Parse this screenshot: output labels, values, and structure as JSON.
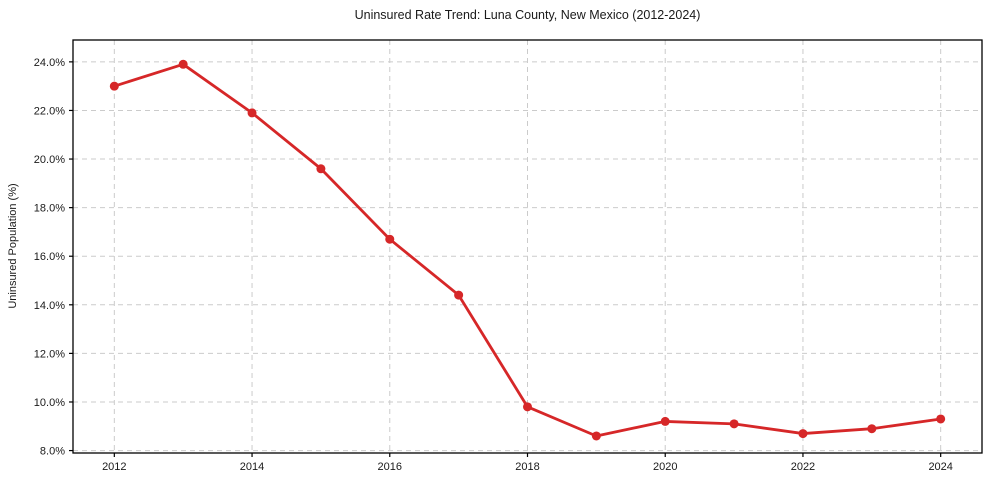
{
  "chart_data": {
    "type": "line",
    "title": "Uninsured Rate Trend: Luna County, New Mexico (2012-2024)",
    "xlabel": "",
    "ylabel": "Uninsured Population (%)",
    "series": [
      {
        "name": "Uninsured rate",
        "x": [
          2012,
          2013,
          2014,
          2015,
          2016,
          2017,
          2018,
          2019,
          2020,
          2021,
          2022,
          2023,
          2024
        ],
        "y": [
          23.0,
          23.9,
          21.9,
          19.6,
          16.7,
          14.4,
          9.8,
          8.6,
          9.2,
          9.1,
          8.7,
          8.9,
          9.3
        ]
      }
    ],
    "xlim": [
      2011.4,
      2024.6
    ],
    "ylim": [
      7.9,
      24.9
    ],
    "xticks": [
      2012,
      2014,
      2016,
      2018,
      2020,
      2022,
      2024
    ],
    "yticks": [
      8,
      10,
      12,
      14,
      16,
      18,
      20,
      22,
      24
    ],
    "ytick_decimals": 1,
    "ytick_suffix": "%",
    "grid": true,
    "legend_position": "none",
    "colors": {
      "line": "#d62728",
      "marker": "#d62728",
      "grid": "#cbcbcb",
      "axis": "#000000",
      "text": "#1a1a1a",
      "background": "#ffffff"
    },
    "marker_style": "circle",
    "marker_radius": 4.5
  }
}
